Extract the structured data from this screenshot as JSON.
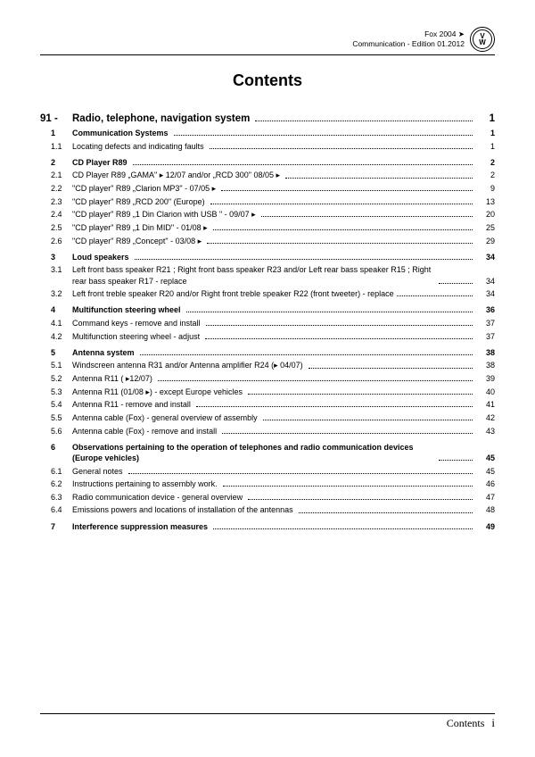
{
  "header": {
    "model": "Fox 2004 ➤",
    "edition": "Communication - Edition 01.2012"
  },
  "title": "Contents",
  "footer": {
    "label": "Contents",
    "page": "i"
  },
  "chapter": {
    "num": "91 -",
    "label": "Radio, telephone, navigation system",
    "page": "1"
  },
  "entries": [
    {
      "num": "1",
      "label": "Communication Systems",
      "page": "1",
      "bold": true,
      "gap": false
    },
    {
      "num": "1.1",
      "label": "Locating defects and indicating faults",
      "page": "1",
      "bold": false
    },
    {
      "num": "2",
      "label": "CD Player R89",
      "page": "2",
      "bold": true,
      "gap": true
    },
    {
      "num": "2.1",
      "label": "CD Player R89 „GAMA\" ▸ 12/07 and/or „RCD 300\" 08/05 ▸",
      "page": "2",
      "bold": false
    },
    {
      "num": "2.2",
      "label": "\"CD player\" R89 „Clarion MP3\" - 07/05 ▸",
      "page": "9",
      "bold": false
    },
    {
      "num": "2.3",
      "label": "\"CD player\" R89 „RCD 200\" (Europe)",
      "page": "13",
      "bold": false
    },
    {
      "num": "2.4",
      "label": "\"CD player\" R89 „1 Din Clarion with USB \" - 09/07 ▸",
      "page": "20",
      "bold": false
    },
    {
      "num": "2.5",
      "label": "\"CD player\" R89 „1 Din MID\" - 01/08 ▸",
      "page": "25",
      "bold": false
    },
    {
      "num": "2.6",
      "label": "\"CD player\" R89 „Concept\" - 03/08 ▸",
      "page": "29",
      "bold": false
    },
    {
      "num": "3",
      "label": "Loud speakers",
      "page": "34",
      "bold": true,
      "gap": true
    },
    {
      "num": "3.1",
      "label": "Left front bass speaker R21 ; Right front bass speaker R23 and/or Left rear bass speaker R15 ; Right rear bass speaker R17 - replace",
      "page": "34",
      "bold": false,
      "multiline": true
    },
    {
      "num": "3.2",
      "label": "Left front treble speaker R20 and/or Right front treble speaker R22 (front tweeter) - replace",
      "page": "34",
      "bold": false,
      "multiline": true
    },
    {
      "num": "4",
      "label": "Multifunction steering wheel",
      "page": "36",
      "bold": true,
      "gap": true
    },
    {
      "num": "4.1",
      "label": "Command keys - remove and install",
      "page": "37",
      "bold": false
    },
    {
      "num": "4.2",
      "label": "Multifunction steering wheel - adjust",
      "page": "37",
      "bold": false
    },
    {
      "num": "5",
      "label": "Antenna system",
      "page": "38",
      "bold": true,
      "gap": true
    },
    {
      "num": "5.1",
      "label": "Windscreen antenna R31 and/or Antenna amplifier R24 (▸ 04/07)",
      "page": "38",
      "bold": false
    },
    {
      "num": "5.2",
      "label": "Antenna R11 ( ▸12/07)",
      "page": "39",
      "bold": false
    },
    {
      "num": "5.3",
      "label": "Antenna R11 (01/08 ▸) - except Europe vehicles",
      "page": "40",
      "bold": false
    },
    {
      "num": "5.4",
      "label": "Antenna R11 - remove and install",
      "page": "41",
      "bold": false
    },
    {
      "num": "5.5",
      "label": "Antenna cable (Fox) - general overview of assembly",
      "page": "42",
      "bold": false
    },
    {
      "num": "5.6",
      "label": "Antenna cable (Fox) - remove and install",
      "page": "43",
      "bold": false
    },
    {
      "num": "6",
      "label": "Observations pertaining to the operation of telephones and radio communication devices (Europe vehicles)",
      "page": "45",
      "bold": true,
      "gap": true,
      "multiline": true
    },
    {
      "num": "6.1",
      "label": "General notes",
      "page": "45",
      "bold": false
    },
    {
      "num": "6.2",
      "label": "Instructions pertaining to assembly work.",
      "page": "46",
      "bold": false
    },
    {
      "num": "6.3",
      "label": "Radio communication device - general overview",
      "page": "47",
      "bold": false
    },
    {
      "num": "6.4",
      "label": "Emissions powers and locations of installation of the antennas",
      "page": "48",
      "bold": false
    },
    {
      "num": "7",
      "label": "Interference suppression measures",
      "page": "49",
      "bold": true,
      "gap": true
    }
  ]
}
